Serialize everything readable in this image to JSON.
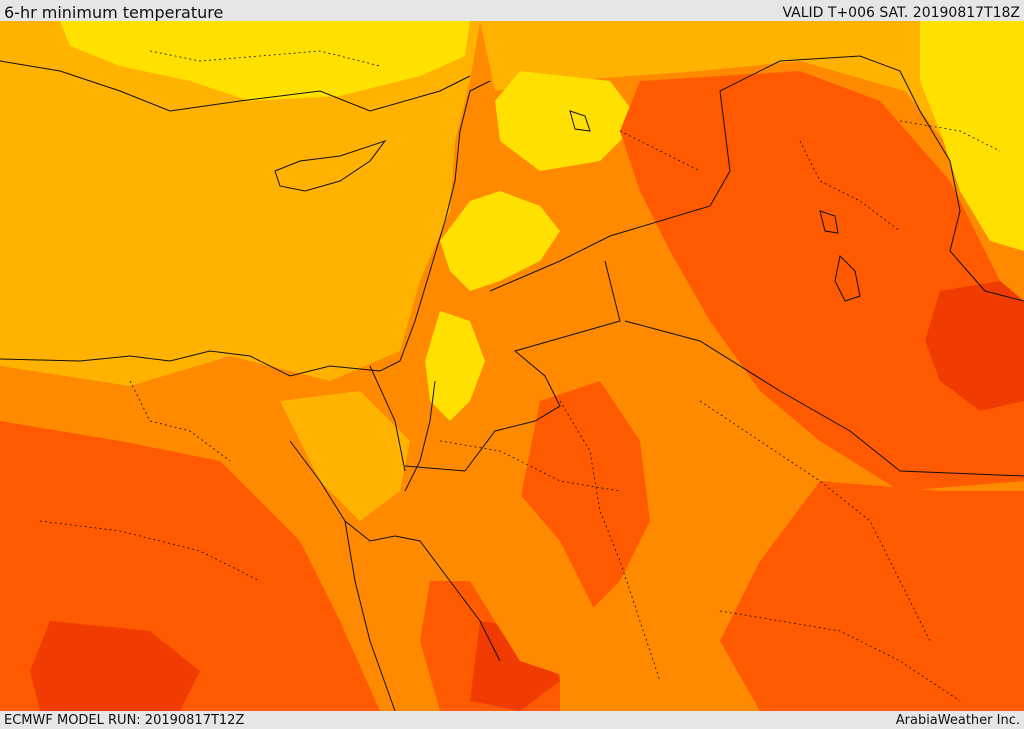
{
  "header": {
    "title": "6-hr minimum temperature",
    "valid": "VALID T+006 SAT. 20190817T18Z"
  },
  "footer": {
    "model_run": "ECMWF MODEL RUN: 20190817T12Z",
    "credit": "ArabiaWeather Inc."
  },
  "map": {
    "colors": {
      "band_cool": "#ffe000",
      "band_mild": "#ffb300",
      "band_warm": "#ff8a00",
      "band_hot": "#ff5a00",
      "band_hottest": "#f03c00",
      "boundary": "#111111"
    }
  }
}
